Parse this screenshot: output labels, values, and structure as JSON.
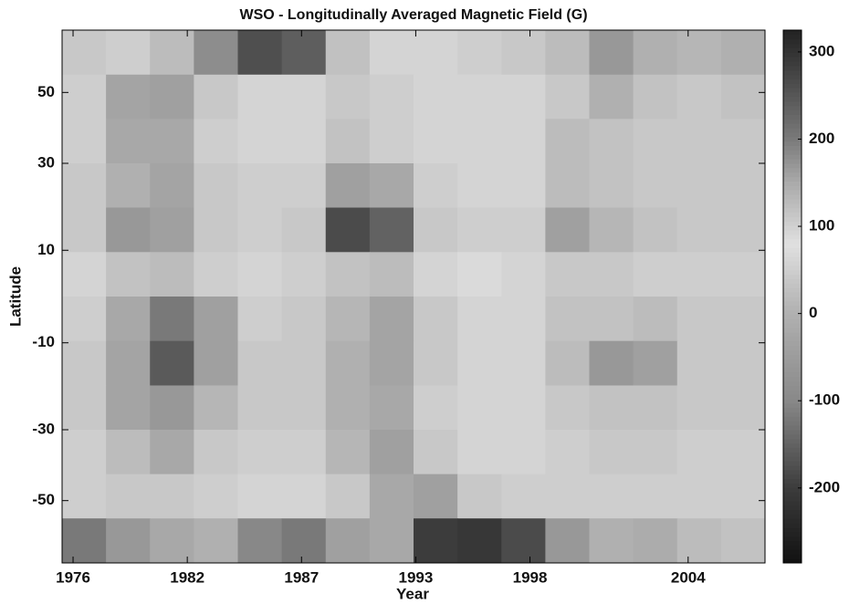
{
  "chart_data": {
    "type": "heatmap",
    "title": "WSO - Longitudinally Averaged Magnetic Field (G)",
    "x_label": "Year",
    "y_label": "Latitude",
    "x": [
      1976.5,
      1978.5,
      1980.5,
      1982.5,
      1984.5,
      1986.5,
      1988.5,
      1990.5,
      1992.5,
      1994.5,
      1996.5,
      1998.5,
      2000.5,
      2002.5,
      2004.5,
      2006.5
    ],
    "y_bins": [
      90,
      56.4,
      41.8,
      30,
      19.5,
      9.6,
      0,
      -9.6,
      -19.5,
      -30,
      -41.8,
      -56.4,
      -90
    ],
    "xlim": [
      1975.5,
      2007.5
    ],
    "ylim": [
      -90,
      90
    ],
    "yscale": "sine",
    "xticks": [
      {
        "value": 1976,
        "label": "1976"
      },
      {
        "value": 1981.2,
        "label": "1982"
      },
      {
        "value": 1986.4,
        "label": "1987"
      },
      {
        "value": 1991.6,
        "label": "1993"
      },
      {
        "value": 1996.8,
        "label": "1998"
      },
      {
        "value": 2004,
        "label": "2004"
      }
    ],
    "yticks": [
      50,
      30,
      10,
      -10,
      -30,
      -50
    ],
    "values": [
      [
        40,
        50,
        20,
        180,
        260,
        240,
        120,
        60,
        60,
        50,
        40,
        20,
        -60,
        0,
        10,
        0
      ],
      [
        50,
        -30,
        -40,
        40,
        60,
        60,
        40,
        50,
        60,
        60,
        60,
        40,
        0,
        30,
        40,
        30
      ],
      [
        50,
        -20,
        -20,
        50,
        60,
        60,
        30,
        50,
        60,
        60,
        60,
        20,
        30,
        40,
        40,
        40
      ],
      [
        40,
        0,
        -30,
        40,
        50,
        50,
        -40,
        -20,
        50,
        60,
        60,
        20,
        30,
        40,
        40,
        40
      ],
      [
        40,
        -60,
        -40,
        40,
        50,
        40,
        -180,
        -150,
        40,
        50,
        50,
        -40,
        10,
        30,
        40,
        40
      ],
      [
        60,
        30,
        20,
        50,
        60,
        50,
        30,
        20,
        60,
        70,
        60,
        40,
        40,
        50,
        50,
        50
      ],
      [
        50,
        -20,
        -120,
        -40,
        50,
        40,
        10,
        -30,
        40,
        60,
        60,
        30,
        30,
        20,
        40,
        40
      ],
      [
        40,
        -30,
        -160,
        -40,
        40,
        40,
        0,
        -30,
        40,
        60,
        60,
        20,
        -60,
        -40,
        40,
        40
      ],
      [
        40,
        -30,
        -60,
        10,
        40,
        40,
        0,
        -20,
        50,
        60,
        60,
        40,
        30,
        30,
        40,
        40
      ],
      [
        50,
        20,
        -20,
        40,
        50,
        50,
        10,
        -40,
        40,
        60,
        60,
        50,
        40,
        40,
        50,
        50
      ],
      [
        50,
        40,
        40,
        50,
        60,
        60,
        40,
        -20,
        -40,
        40,
        50,
        50,
        50,
        50,
        50,
        50
      ],
      [
        -120,
        -60,
        -20,
        0,
        -100,
        -120,
        -40,
        -20,
        -200,
        -210,
        -180,
        -60,
        0,
        -10,
        20,
        30
      ]
    ],
    "clim": [
      -286,
      325
    ],
    "cticks": [
      300,
      200,
      100,
      0,
      -100,
      -200
    ],
    "colormap": [
      [
        -286,
        "#111111"
      ],
      [
        -200,
        "#3c3c3c"
      ],
      [
        -100,
        "#888888"
      ],
      [
        0,
        "#b0b0b0"
      ],
      [
        80,
        "#e0e0e0"
      ],
      [
        150,
        "#aaaaaa"
      ],
      [
        200,
        "#7a7a7a"
      ],
      [
        300,
        "#333333"
      ],
      [
        325,
        "#222222"
      ]
    ]
  }
}
